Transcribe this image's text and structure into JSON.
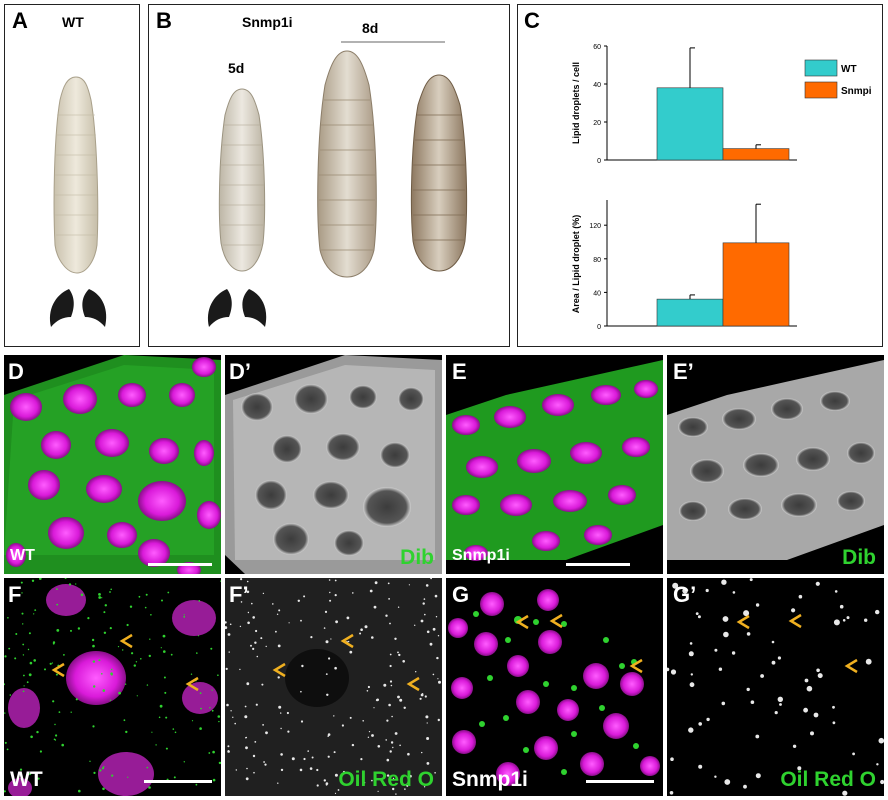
{
  "panels": {
    "A": {
      "letter": "A",
      "genotype": "WT"
    },
    "B": {
      "letter": "B",
      "genotype": "Snmp1i",
      "age_early": "5d",
      "age_late": "8d"
    },
    "C": {
      "letter": "C"
    },
    "D": {
      "letter": "D",
      "label": "WT"
    },
    "D2": {
      "letter": "D’",
      "label": "Dib"
    },
    "E": {
      "letter": "E",
      "label": "Snmp1i"
    },
    "E2": {
      "letter": "E’",
      "label": "Dib"
    },
    "F": {
      "letter": "F",
      "label": "WT"
    },
    "F2": {
      "letter": "F’",
      "label": "Oil Red O"
    },
    "G": {
      "letter": "G",
      "label": "Snmp1i"
    },
    "G2": {
      "letter": "G’",
      "label": "Oil Red O"
    }
  },
  "colors": {
    "wt": "#33cccc",
    "snmp": "#ff6a00",
    "nuclei": "#e020e0",
    "membrane": "#22b822",
    "arrow": "#f0b020"
  },
  "chart_data": [
    {
      "type": "bar",
      "ylabel": "Lipid droplets / cell",
      "ylim": [
        0,
        60
      ],
      "yticks": [
        "0",
        "20",
        "40",
        "60"
      ],
      "series": [
        {
          "name": "WT",
          "values": [
            38
          ],
          "error": [
            21
          ]
        },
        {
          "name": "Snmpi",
          "values": [
            6
          ],
          "error": [
            2
          ]
        }
      ],
      "legend": "top-right"
    },
    {
      "type": "bar",
      "ylabel": "Area / Lipid droplet  (%)",
      "ylim": [
        0,
        150
      ],
      "yticks": [
        "0",
        "40",
        "80",
        "120"
      ],
      "series": [
        {
          "name": "WT",
          "values": [
            32
          ],
          "error": [
            5
          ]
        },
        {
          "name": "Snmpi",
          "values": [
            99
          ],
          "error": [
            46
          ]
        }
      ]
    }
  ]
}
